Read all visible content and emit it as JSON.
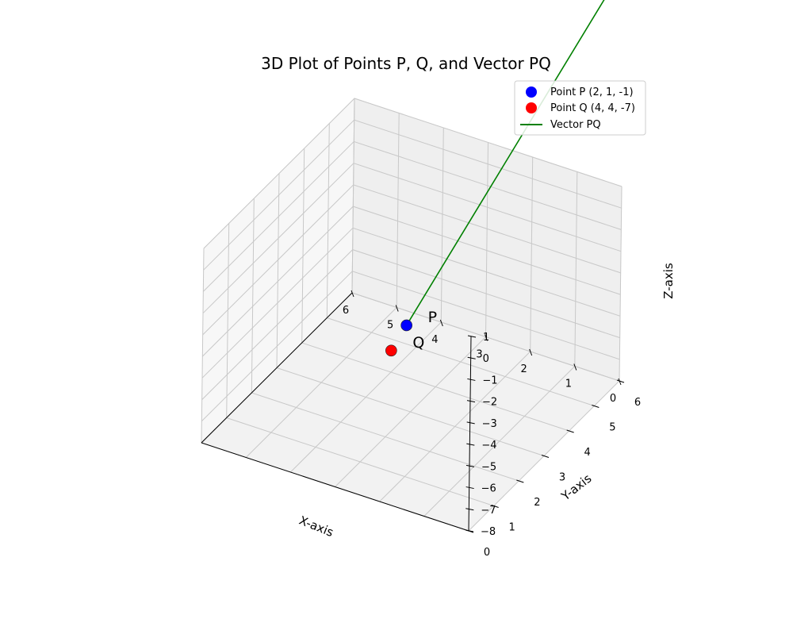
{
  "chart_data": {
    "type": "scatter",
    "projection": "3d",
    "title": "3D Plot of Points P, Q, and Vector PQ",
    "xlabel": "X-axis",
    "ylabel": "Y-axis",
    "zlabel": "Z-axis",
    "xlim": [
      0,
      6
    ],
    "ylim": [
      0,
      6
    ],
    "zlim": [
      -8,
      1
    ],
    "xticks": [
      "0",
      "1",
      "2",
      "3",
      "4",
      "5",
      "6"
    ],
    "yticks": [
      "0",
      "1",
      "2",
      "3",
      "4",
      "5",
      "6"
    ],
    "zticks": [
      "1",
      "0",
      "−1",
      "−2",
      "−3",
      "−4",
      "−5",
      "−6",
      "−7",
      "−8"
    ],
    "grid": true,
    "legend_position": "top-right",
    "points": [
      {
        "legend": "Point P (2, 1, -1)",
        "label": "P",
        "x": 2,
        "y": 1,
        "z": -1,
        "color": "#0000ff"
      },
      {
        "legend": "Point Q (4, 4, -7)",
        "label": "Q",
        "x": 4,
        "y": 4,
        "z": -7,
        "color": "#ff0000"
      }
    ],
    "vector": {
      "legend": "Vector PQ",
      "from": [
        2,
        1,
        -1
      ],
      "to": [
        4,
        4,
        -7
      ],
      "color": "#008000"
    }
  }
}
